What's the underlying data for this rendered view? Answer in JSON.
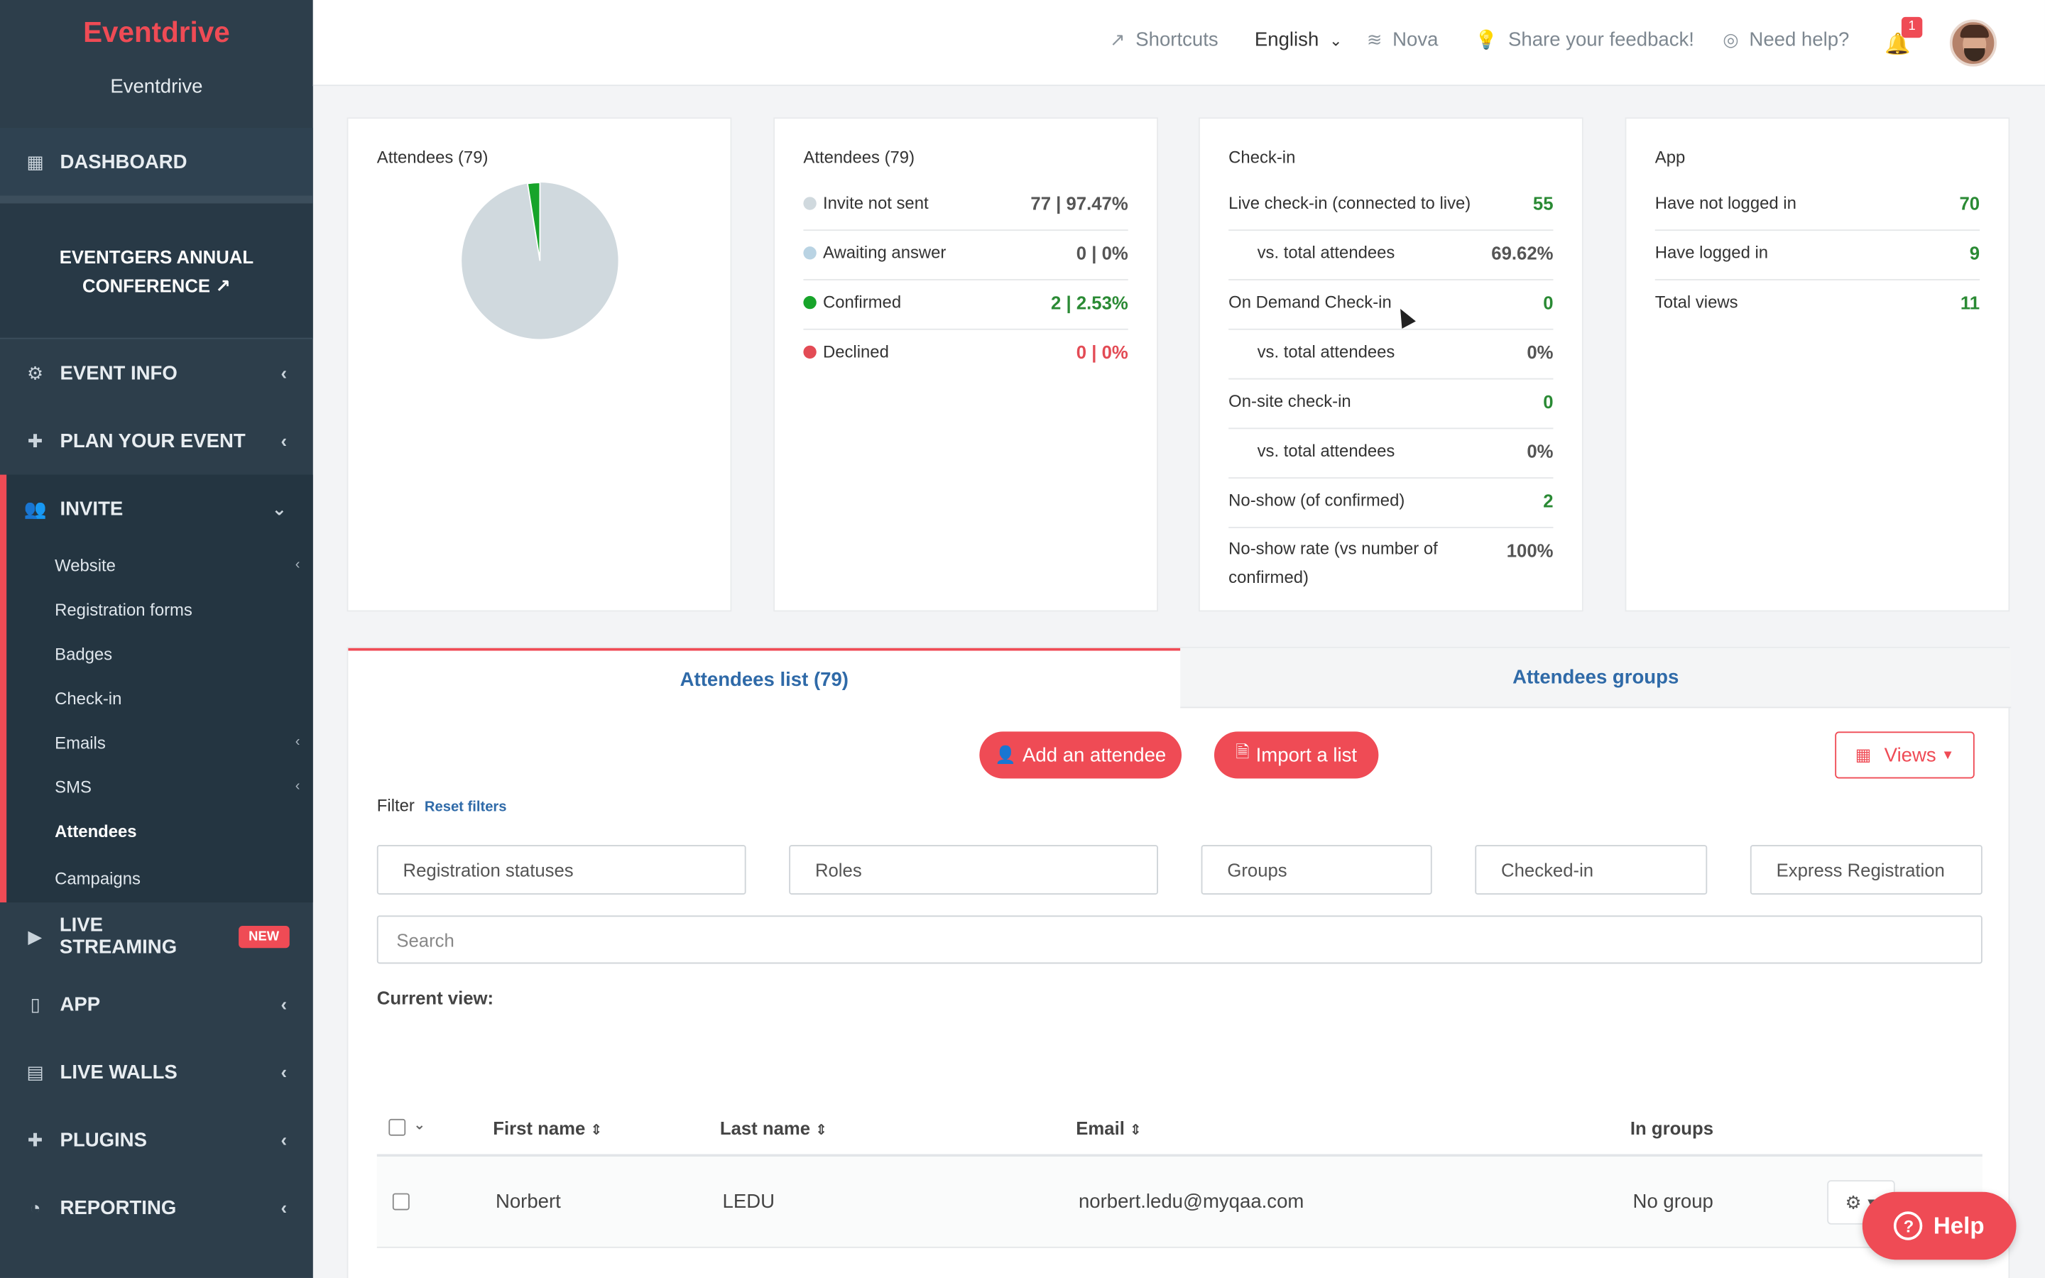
{
  "sidebar": {
    "brand": "Eventdrive",
    "sub_brand": "Eventdrive",
    "dashboard": "DASHBOARD",
    "event_name_line1": "EVENTGERS ANNUAL",
    "event_name_line2": "CONFERENCE",
    "event_info": "EVENT INFO",
    "plan_event": "PLAN YOUR EVENT",
    "invite": "INVITE",
    "invite_items": [
      {
        "label": "Website"
      },
      {
        "label": "Registration forms"
      },
      {
        "label": "Badges"
      },
      {
        "label": "Check-in"
      },
      {
        "label": "Emails"
      },
      {
        "label": "SMS"
      },
      {
        "label": "Attendees"
      },
      {
        "label": "Campaigns"
      }
    ],
    "live_streaming": "LIVE STREAMING",
    "new_badge": "NEW",
    "app": "APP",
    "live_walls": "LIVE WALLS",
    "plugins": "PLUGINS",
    "reporting": "REPORTING"
  },
  "topbar": {
    "shortcuts": "Shortcuts",
    "language": "English",
    "database": "Nova",
    "feedback": "Share your feedback!",
    "help": "Need help?",
    "notifications": "1"
  },
  "cards": {
    "pie": {
      "title": "Attendees (79)",
      "confirmed_fraction": 0.0253
    },
    "attendees": {
      "title": "Attendees (79)",
      "rows": [
        {
          "label": "Invite not sent",
          "value": "77 | 97.47%"
        },
        {
          "label": "Awaiting answer",
          "value": "0 | 0%"
        },
        {
          "label": "Confirmed",
          "value": "2 | 2.53%"
        },
        {
          "label": "Declined",
          "value": "0 | 0%"
        }
      ]
    },
    "checkin": {
      "title": "Check-in",
      "rows": [
        {
          "label": "Live check-in (connected to live)",
          "value": "55"
        },
        {
          "label": "vs. total attendees",
          "value": "69.62%"
        },
        {
          "label": "On Demand Check-in",
          "value": "0"
        },
        {
          "label": "vs. total attendees",
          "value": "0%"
        },
        {
          "label": "On-site check-in",
          "value": "0"
        },
        {
          "label": "vs. total attendees",
          "value": "0%"
        },
        {
          "label": "No-show (of confirmed)",
          "value": "2"
        },
        {
          "label": "No-show rate (vs number of confirmed)",
          "value": "100%"
        }
      ]
    },
    "app": {
      "title": "App",
      "rows": [
        {
          "label": "Have not logged in",
          "value": "70"
        },
        {
          "label": "Have logged in",
          "value": "9"
        },
        {
          "label": "Total views",
          "value": "11"
        }
      ]
    }
  },
  "tabs": {
    "list": "Attendees list (79)",
    "groups": "Attendees groups"
  },
  "actions": {
    "add": "Add an attendee",
    "import": "Import a list",
    "views": "Views"
  },
  "filters": {
    "label": "Filter",
    "reset": "Reset filters",
    "registration_statuses": "Registration statuses",
    "roles": "Roles",
    "groups": "Groups",
    "checked_in": "Checked-in",
    "express": "Express Registration",
    "search_placeholder": "Search",
    "current_view": "Current view:"
  },
  "table": {
    "columns": [
      "First name",
      "Last name",
      "Email",
      "In groups"
    ],
    "rows": [
      {
        "first": "Norbert",
        "last": "LEDU",
        "email": "norbert.ledu@myqaa.com",
        "groups": "No group"
      }
    ]
  },
  "help_button": "Help",
  "colors": {
    "accent": "#ef4b55",
    "sidebar": "#2d3e4b",
    "link": "#2f6aa8",
    "green": "#2a8a34"
  }
}
